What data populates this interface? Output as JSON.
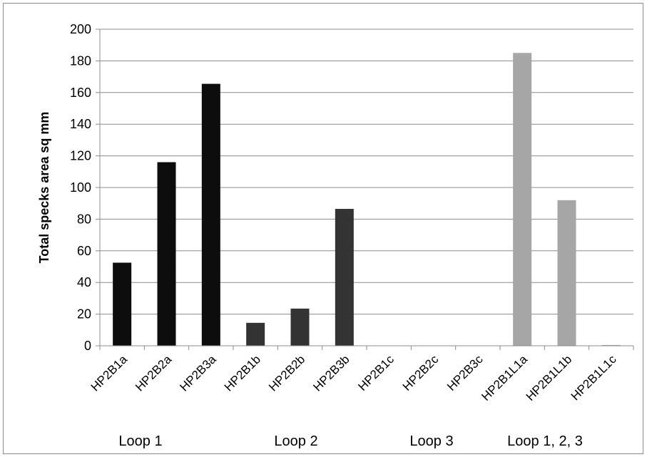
{
  "chart_data": {
    "type": "bar",
    "title": "",
    "xlabel": "",
    "ylabel": "Total specks area sq mm",
    "ylim": [
      0,
      200
    ],
    "yticks": [
      0,
      20,
      40,
      60,
      80,
      100,
      120,
      140,
      160,
      180,
      200
    ],
    "grid": true,
    "categories": [
      "HP2B1a",
      "HP2B2a",
      "HP2B3a",
      "HP2B1b",
      "HP2B2b",
      "HP2B3b",
      "HP2B1c",
      "HP2B2c",
      "HP2B3c",
      "HP2B1L1a",
      "HP2B1L1b",
      "HP2B1L1c"
    ],
    "values": [
      52.5,
      116,
      165.5,
      14.5,
      23.5,
      86.5,
      0,
      0,
      0,
      185,
      92,
      0.5
    ],
    "bar_colors": [
      "#0d0d0d",
      "#0d0d0d",
      "#0d0d0d",
      "#333333",
      "#333333",
      "#333333",
      "#6e6e6e",
      "#6e6e6e",
      "#6e6e6e",
      "#a6a6a6",
      "#a6a6a6",
      "#a6a6a6"
    ],
    "groups": [
      {
        "label": "Loop 1",
        "categories": [
          "HP2B1a",
          "HP2B2a",
          "HP2B3a"
        ]
      },
      {
        "label": "Loop 2",
        "categories": [
          "HP2B1b",
          "HP2B2b",
          "HP2B3b"
        ]
      },
      {
        "label": "Loop 3",
        "categories": [
          "HP2B1c",
          "HP2B2c",
          "HP2B3c"
        ]
      },
      {
        "label": "Loop 1, 2, 3",
        "categories": [
          "HP2B1L1a",
          "HP2B1L1b",
          "HP2B1L1c"
        ]
      }
    ]
  }
}
